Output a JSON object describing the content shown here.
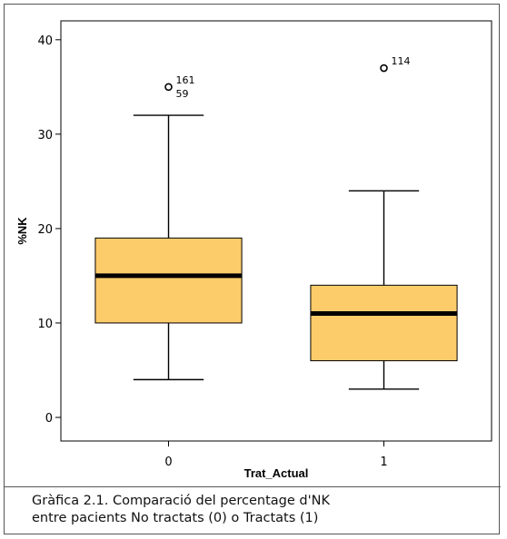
{
  "chart_data": {
    "type": "boxplot",
    "xlabel": "Trat_Actual",
    "ylabel": "%NK",
    "ylim": [
      -2.5,
      42
    ],
    "yticks": [
      0,
      10,
      20,
      30,
      40
    ],
    "box_color": "#fdcc6a",
    "categories": [
      "0",
      "1"
    ],
    "boxes": [
      {
        "category": "0",
        "whisker_low": 4,
        "q1": 10,
        "median": 15,
        "q3": 19,
        "whisker_high": 32,
        "outliers": [
          {
            "value": 35,
            "labels": [
              "161",
              "59"
            ]
          }
        ]
      },
      {
        "category": "1",
        "whisker_low": 3,
        "q1": 6,
        "median": 11,
        "q3": 14,
        "whisker_high": 24,
        "outliers": [
          {
            "value": 37,
            "labels": [
              "114"
            ]
          }
        ]
      }
    ]
  },
  "caption": {
    "line1": "Gràfica 2.1. Comparació del percentage d'NK",
    "line2": "entre pacients No tractats (0) o Tractats (1)"
  }
}
